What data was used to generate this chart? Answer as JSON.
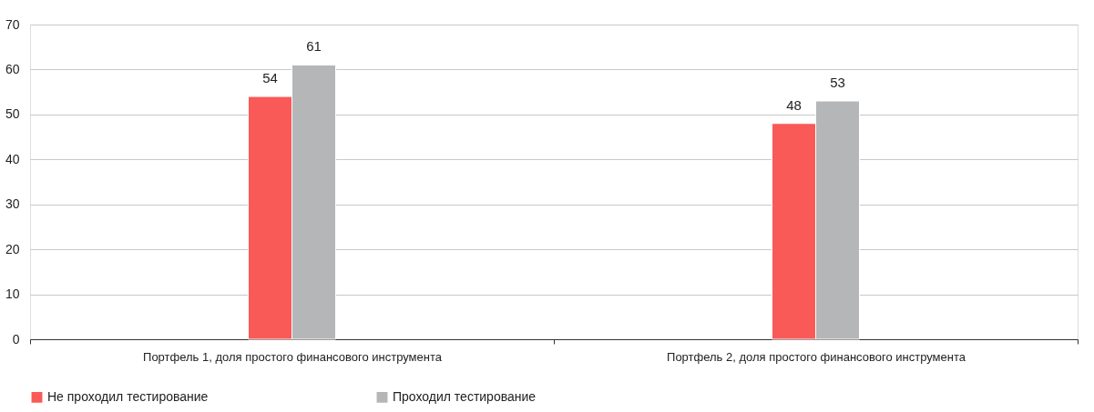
{
  "chart_data": {
    "type": "bar",
    "categories": [
      "Портфель 1, доля простого финансового инструмента",
      "Портфель 2, доля простого финансового инструмента"
    ],
    "series": [
      {
        "name": "Не проходил тестирование",
        "color": "#f95a57",
        "values": [
          54,
          48
        ]
      },
      {
        "name": "Проходил тестирование",
        "color": "#b5b6b8",
        "values": [
          61,
          53
        ]
      }
    ],
    "ylim": [
      0,
      70
    ],
    "yticks": [
      0,
      10,
      20,
      30,
      40,
      50,
      60,
      70
    ],
    "grid": "y",
    "legend": "bottom",
    "data_labels": true
  }
}
